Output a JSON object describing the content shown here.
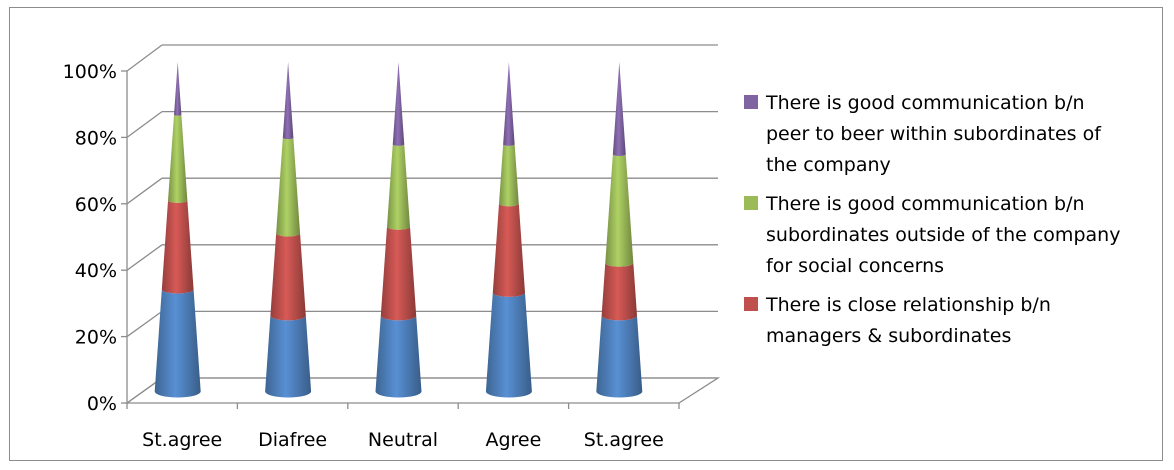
{
  "chart_data": {
    "type": "bar",
    "style": "3d-cone-stacked-100-percent",
    "categories": [
      "St.agree",
      "Diafree",
      "Neutral",
      "Agree",
      "St.agree"
    ],
    "y_ticks": [
      "0%",
      "20%",
      "40%",
      "60%",
      "80%",
      "100%"
    ],
    "ylim": [
      0,
      100
    ],
    "grid": true,
    "legend_position": "right",
    "series": [
      {
        "key": "s1",
        "color": "#4F81BD",
        "values": [
          31,
          23,
          23,
          30,
          23
        ]
      },
      {
        "key": "s2",
        "name": "There is close relationship b/n managers & subordinates",
        "color": "#C0504D",
        "values": [
          27,
          25,
          27,
          27,
          16
        ]
      },
      {
        "key": "s3",
        "name": "There is good communication b/n subordinates outside of the company for social concerns",
        "color": "#9BBB59",
        "values": [
          26,
          29,
          25,
          18,
          33
        ]
      },
      {
        "key": "s4",
        "name": "There is good communication b/n peer to beer within subordinates of the company",
        "color": "#8064A2",
        "values": [
          16,
          23,
          25,
          25,
          28
        ]
      }
    ]
  },
  "legend": [
    {
      "name": "There is good communication b/n peer to beer within subordinates of the company",
      "color": "#8064A2"
    },
    {
      "name": "There is good communication b/n subordinates outside of the company for social concerns",
      "color": "#9BBB59"
    },
    {
      "name": "There is close relationship b/n managers & subordinates",
      "color": "#C0504D"
    }
  ]
}
